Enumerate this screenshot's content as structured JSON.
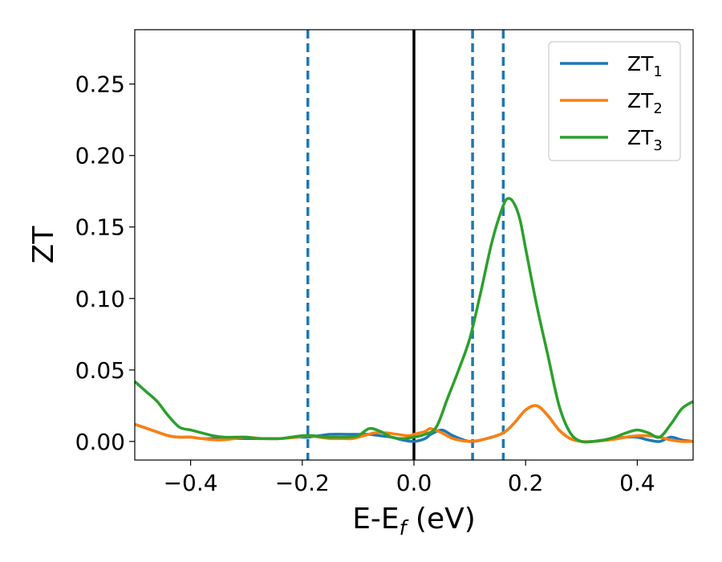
{
  "chart_data": {
    "type": "line",
    "xlabel": "E-E",
    "xlabel_sub": "f",
    "xlabel_unit": " (eV)",
    "ylabel": "ZT",
    "xlim": [
      -0.5,
      0.5
    ],
    "ylim": [
      -0.013,
      0.288
    ],
    "x_ticks": [
      -0.4,
      -0.2,
      0.0,
      0.2,
      0.4
    ],
    "x_tick_labels": [
      "−0.4",
      "−0.2",
      "0.0",
      "0.2",
      "0.4"
    ],
    "y_ticks": [
      0.0,
      0.05,
      0.1,
      0.15,
      0.2,
      0.25
    ],
    "y_tick_labels": [
      "0.00",
      "0.05",
      "0.10",
      "0.15",
      "0.20",
      "0.25"
    ],
    "grid": false,
    "legend_position": "top-right",
    "reference_lines": [
      {
        "x": 0.0,
        "style": "solid",
        "color": "#000000"
      },
      {
        "x": -0.19,
        "style": "dashed",
        "color": "#1f77b4"
      },
      {
        "x": 0.105,
        "style": "dashed",
        "color": "#1f77b4"
      },
      {
        "x": 0.16,
        "style": "dashed",
        "color": "#1f77b4"
      }
    ],
    "series": [
      {
        "name": "ZT",
        "name_sub": "1",
        "color": "#1f77b4",
        "x": [
          -0.5,
          -0.47,
          -0.44,
          -0.42,
          -0.4,
          -0.38,
          -0.35,
          -0.32,
          -0.3,
          -0.27,
          -0.24,
          -0.21,
          -0.19,
          -0.17,
          -0.15,
          -0.12,
          -0.1,
          -0.08,
          -0.06,
          -0.04,
          -0.02,
          0.0,
          0.02,
          0.03,
          0.05,
          0.07,
          0.1,
          0.13,
          0.16,
          0.18,
          0.2,
          0.22,
          0.24,
          0.26,
          0.28,
          0.3,
          0.32,
          0.34,
          0.36,
          0.38,
          0.4,
          0.42,
          0.44,
          0.46,
          0.48,
          0.5
        ],
        "y": [
          0.012,
          0.008,
          0.004,
          0.003,
          0.003,
          0.002,
          0.002,
          0.002,
          0.002,
          0.002,
          0.002,
          0.003,
          0.003,
          0.004,
          0.005,
          0.005,
          0.005,
          0.005,
          0.004,
          0.003,
          0.001,
          0.0,
          0.002,
          0.005,
          0.008,
          0.004,
          0.0,
          0.002,
          0.006,
          0.013,
          0.022,
          0.025,
          0.018,
          0.008,
          0.002,
          0.0,
          0.0,
          0.001,
          0.002,
          0.003,
          0.003,
          0.001,
          0.0,
          0.003,
          0.001,
          0.0
        ]
      },
      {
        "name": "ZT",
        "name_sub": "2",
        "color": "#ff7f0e",
        "x": [
          -0.5,
          -0.47,
          -0.44,
          -0.42,
          -0.4,
          -0.38,
          -0.35,
          -0.32,
          -0.3,
          -0.27,
          -0.24,
          -0.21,
          -0.19,
          -0.17,
          -0.15,
          -0.13,
          -0.11,
          -0.09,
          -0.07,
          -0.05,
          -0.03,
          -0.01,
          0.0,
          0.02,
          0.03,
          0.05,
          0.07,
          0.1,
          0.13,
          0.16,
          0.18,
          0.2,
          0.22,
          0.24,
          0.26,
          0.28,
          0.3,
          0.32,
          0.35,
          0.38,
          0.4,
          0.42,
          0.44,
          0.46,
          0.48,
          0.5
        ],
        "y": [
          0.012,
          0.008,
          0.004,
          0.003,
          0.003,
          0.002,
          0.001,
          0.002,
          0.003,
          0.002,
          0.002,
          0.003,
          0.004,
          0.003,
          0.002,
          0.002,
          0.002,
          0.004,
          0.006,
          0.006,
          0.005,
          0.004,
          0.005,
          0.007,
          0.009,
          0.006,
          0.002,
          0.0,
          0.002,
          0.006,
          0.013,
          0.022,
          0.025,
          0.018,
          0.008,
          0.002,
          0.0,
          0.0,
          0.001,
          0.003,
          0.004,
          0.004,
          0.003,
          0.001,
          0.0,
          0.0
        ]
      },
      {
        "name": "ZT",
        "name_sub": "3",
        "color": "#2ca02c",
        "x": [
          -0.5,
          -0.48,
          -0.46,
          -0.44,
          -0.42,
          -0.4,
          -0.38,
          -0.36,
          -0.34,
          -0.32,
          -0.3,
          -0.28,
          -0.26,
          -0.24,
          -0.22,
          -0.2,
          -0.18,
          -0.16,
          -0.14,
          -0.12,
          -0.1,
          -0.08,
          -0.06,
          -0.04,
          -0.02,
          0.0,
          0.02,
          0.04,
          0.06,
          0.08,
          0.1,
          0.12,
          0.14,
          0.16,
          0.17,
          0.18,
          0.19,
          0.2,
          0.22,
          0.24,
          0.26,
          0.28,
          0.3,
          0.32,
          0.34,
          0.36,
          0.38,
          0.4,
          0.42,
          0.44,
          0.46,
          0.48,
          0.5
        ],
        "y": [
          0.042,
          0.035,
          0.028,
          0.018,
          0.01,
          0.008,
          0.006,
          0.004,
          0.003,
          0.003,
          0.003,
          0.002,
          0.002,
          0.002,
          0.003,
          0.004,
          0.004,
          0.003,
          0.003,
          0.003,
          0.004,
          0.009,
          0.007,
          0.003,
          0.002,
          0.003,
          0.005,
          0.01,
          0.03,
          0.05,
          0.072,
          0.105,
          0.14,
          0.165,
          0.17,
          0.166,
          0.155,
          0.135,
          0.095,
          0.06,
          0.025,
          0.006,
          0.0,
          0.0,
          0.001,
          0.003,
          0.006,
          0.008,
          0.006,
          0.003,
          0.012,
          0.023,
          0.028
        ]
      }
    ]
  }
}
